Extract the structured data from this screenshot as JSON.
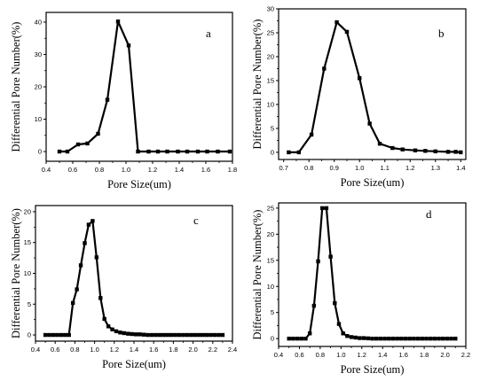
{
  "chart_data": [
    {
      "type": "line",
      "panel_label": "a",
      "xlabel": "Pore Size(um)",
      "ylabel": "Differential Pore Number(%)",
      "xlim": [
        0.4,
        1.8
      ],
      "ylim": [
        -3,
        43
      ],
      "xticks": [
        0.4,
        0.6,
        0.8,
        1.0,
        1.2,
        1.4,
        1.6,
        1.8
      ],
      "yticks": [
        0,
        10,
        20,
        30,
        40
      ],
      "grid": false,
      "series": [
        {
          "x": [
            0.5,
            0.56,
            0.64,
            0.71,
            0.79,
            0.86,
            0.94,
            1.02,
            1.09,
            1.17,
            1.24,
            1.31,
            1.39,
            1.46,
            1.54,
            1.61,
            1.69,
            1.78
          ],
          "y": [
            0.0,
            0.0,
            2.2,
            2.5,
            5.5,
            16.0,
            40.2,
            32.8,
            0.0,
            0.0,
            0.0,
            0.0,
            0.0,
            0.0,
            0.0,
            0.0,
            0.0,
            0.0
          ]
        }
      ]
    },
    {
      "type": "line",
      "panel_label": "b",
      "xlabel": "Pore Size(um)",
      "ylabel": "Differential Pore Number(%)",
      "xlim": [
        0.68,
        1.42
      ],
      "ylim": [
        -1.5,
        30
      ],
      "xticks": [
        0.7,
        0.8,
        0.9,
        1.0,
        1.1,
        1.2,
        1.3,
        1.4
      ],
      "yticks": [
        0,
        5,
        10,
        15,
        20,
        25,
        30
      ],
      "grid": false,
      "series": [
        {
          "x": [
            0.72,
            0.76,
            0.81,
            0.86,
            0.91,
            0.95,
            1.0,
            1.04,
            1.08,
            1.13,
            1.17,
            1.22,
            1.26,
            1.3,
            1.35,
            1.38,
            1.4
          ],
          "y": [
            0.0,
            0.0,
            3.7,
            17.5,
            27.2,
            25.2,
            15.5,
            6.0,
            1.8,
            0.9,
            0.6,
            0.4,
            0.3,
            0.2,
            0.1,
            0.1,
            0.0
          ]
        }
      ]
    },
    {
      "type": "line",
      "panel_label": "c",
      "xlabel": "Pore Size(um)",
      "ylabel": "Differential Pore Number(%)",
      "xlim": [
        0.4,
        2.4
      ],
      "ylim": [
        -1,
        21
      ],
      "xticks": [
        0.4,
        0.6,
        0.8,
        1.0,
        1.2,
        1.4,
        1.6,
        1.8,
        2.0,
        2.2,
        2.4
      ],
      "yticks": [
        0,
        5,
        10,
        15,
        20
      ],
      "grid": false,
      "series": [
        {
          "x": [
            0.5,
            0.54,
            0.58,
            0.62,
            0.66,
            0.7,
            0.74,
            0.78,
            0.82,
            0.86,
            0.9,
            0.94,
            0.98,
            1.02,
            1.06,
            1.1,
            1.14,
            1.18,
            1.22,
            1.26,
            1.3,
            1.34,
            1.38,
            1.42,
            1.46,
            1.5,
            1.54,
            1.58,
            1.62,
            1.66,
            1.7,
            1.74,
            1.78,
            1.82,
            1.86,
            1.9,
            1.94,
            1.98,
            2.02,
            2.06,
            2.1,
            2.14,
            2.18,
            2.22,
            2.26,
            2.3
          ],
          "y": [
            0.0,
            0.0,
            0.0,
            0.0,
            0.0,
            0.0,
            0.0,
            5.2,
            7.4,
            11.3,
            14.9,
            17.9,
            18.5,
            12.6,
            6.0,
            2.6,
            1.4,
            0.9,
            0.6,
            0.4,
            0.3,
            0.2,
            0.15,
            0.1,
            0.1,
            0.05,
            0.0,
            0.0,
            0.0,
            0.0,
            0.0,
            0.0,
            0.0,
            0.0,
            0.0,
            0.0,
            0.0,
            0.0,
            0.0,
            0.0,
            0.0,
            0.0,
            0.0,
            0.0,
            0.0,
            0.0
          ]
        }
      ]
    },
    {
      "type": "line",
      "panel_label": "d",
      "xlabel": "Pore Size(um)",
      "ylabel": "Differential Pore Number(%)",
      "xlim": [
        0.4,
        2.2
      ],
      "ylim": [
        -1.5,
        26
      ],
      "xticks": [
        0.4,
        0.6,
        0.8,
        1.0,
        1.2,
        1.4,
        1.6,
        1.8,
        2.0,
        2.2
      ],
      "yticks": [
        0,
        5,
        10,
        15,
        20,
        25
      ],
      "grid": false,
      "series": [
        {
          "x": [
            0.5,
            0.54,
            0.58,
            0.62,
            0.66,
            0.7,
            0.74,
            0.78,
            0.82,
            0.86,
            0.9,
            0.94,
            0.98,
            1.02,
            1.06,
            1.1,
            1.14,
            1.18,
            1.22,
            1.26,
            1.3,
            1.34,
            1.38,
            1.42,
            1.46,
            1.5,
            1.54,
            1.58,
            1.62,
            1.66,
            1.7,
            1.74,
            1.78,
            1.82,
            1.86,
            1.9,
            1.94,
            1.98,
            2.02,
            2.06,
            2.1
          ],
          "y": [
            0.0,
            0.0,
            0.0,
            0.0,
            0.0,
            1.0,
            6.3,
            14.8,
            25.0,
            25.0,
            15.7,
            6.8,
            2.8,
            1.0,
            0.5,
            0.3,
            0.2,
            0.1,
            0.1,
            0.05,
            0.0,
            0.0,
            0.0,
            0.0,
            0.0,
            0.0,
            0.0,
            0.0,
            0.0,
            0.0,
            0.0,
            0.0,
            0.0,
            0.0,
            0.0,
            0.0,
            0.0,
            0.0,
            0.0,
            0.0,
            0.0
          ]
        }
      ]
    }
  ]
}
